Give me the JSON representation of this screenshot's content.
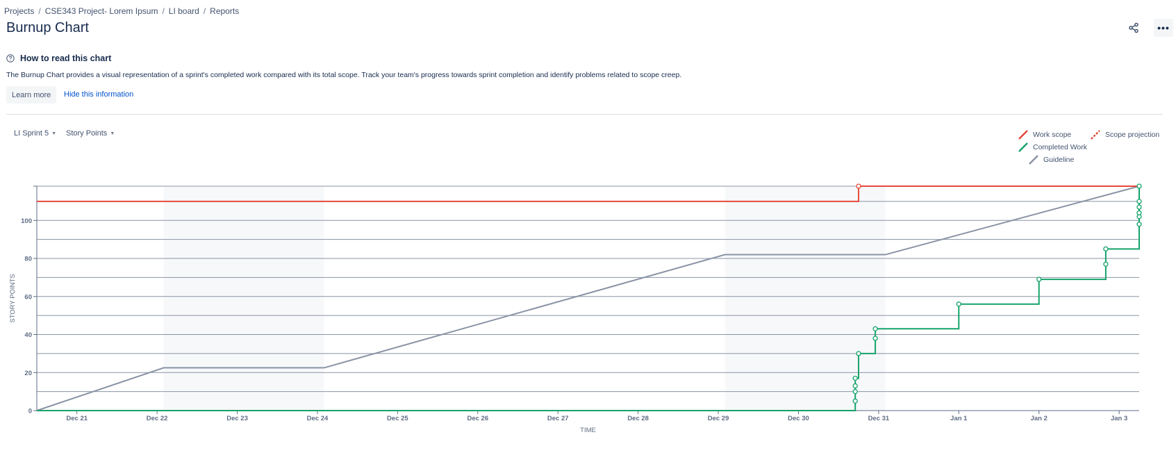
{
  "breadcrumb": [
    "Projects",
    "CSE343 Project- Lorem Ipsum",
    "LI board",
    "Reports"
  ],
  "page": {
    "title": "Burnup Chart"
  },
  "info": {
    "title": "How to read this chart",
    "description": "The Burnup Chart provides a visual representation of a sprint's completed work compared with its total scope. Track your team's progress towards sprint completion and identify problems related to scope creep.",
    "learn_more": "Learn more",
    "hide": "Hide this information"
  },
  "filters": {
    "sprint": "LI Sprint 5",
    "estimation": "Story Points"
  },
  "icons": {
    "share": "share-icon",
    "more": "more-icon",
    "help": "question-circle-icon",
    "caret": "chevron-down-icon"
  },
  "chart_data": {
    "type": "line",
    "xlabel": "TIME",
    "ylabel": "STORY POINTS",
    "x_ticks": [
      "Dec 21",
      "Dec 22",
      "Dec 23",
      "Dec 24",
      "Dec 25",
      "Dec 26",
      "Dec 27",
      "Dec 28",
      "Dec 29",
      "Dec 30",
      "Dec 31",
      "Jan 1",
      "Jan 2",
      "Jan 3"
    ],
    "x_range": [
      "Dec 20 12:00",
      "Jan 3 06:00"
    ],
    "ylim": [
      0,
      118
    ],
    "y_ticks": [
      0,
      20,
      40,
      60,
      80,
      100
    ],
    "non_working_periods": [
      [
        "Dec 22 02:00",
        "Dec 24 02:00"
      ],
      [
        "Dec 29 02:00",
        "Dec 31 02:00"
      ]
    ],
    "legend": [
      {
        "name": "Work scope",
        "color": "#E5493A",
        "style": "solid"
      },
      {
        "name": "Scope projection",
        "color": "#E5493A",
        "style": "dashed"
      },
      {
        "name": "Completed Work",
        "color": "#14A36A",
        "style": "solid"
      },
      {
        "name": "Guideline",
        "color": "#8993A4",
        "style": "solid"
      }
    ],
    "series": [
      {
        "name": "Work scope",
        "color": "#E5493A",
        "step": true,
        "points": [
          [
            "Dec 20 12:00",
            110
          ],
          [
            "Dec 30 18:00",
            118
          ],
          [
            "Jan 3 06:00",
            118
          ]
        ],
        "markers": [
          [
            "Dec 30 18:00",
            118
          ]
        ]
      },
      {
        "name": "Guideline",
        "color": "#8993A4",
        "step": false,
        "points": [
          [
            "Dec 20 12:00",
            0
          ],
          [
            "Dec 22 02:00",
            22.5
          ],
          [
            "Dec 24 02:00",
            22.5
          ],
          [
            "Dec 29 02:00",
            82
          ],
          [
            "Dec 31 02:00",
            82
          ],
          [
            "Jan 3 06:00",
            118
          ]
        ]
      },
      {
        "name": "Completed Work",
        "color": "#14A36A",
        "step": true,
        "points": [
          [
            "Dec 20 12:00",
            0
          ],
          [
            "Dec 30 17:00",
            0
          ],
          [
            "Dec 30 17:00",
            5
          ],
          [
            "Dec 30 17:00",
            10
          ],
          [
            "Dec 30 17:00",
            13
          ],
          [
            "Dec 30 17:00",
            17
          ],
          [
            "Dec 30 18:00",
            30
          ],
          [
            "Dec 30 23:00",
            38
          ],
          [
            "Dec 30 23:00",
            43
          ],
          [
            "Jan 1 00:00",
            56
          ],
          [
            "Jan 2 00:00",
            69
          ],
          [
            "Jan 2 20:00",
            77
          ],
          [
            "Jan 2 20:00",
            85
          ],
          [
            "Jan 3 06:00",
            98
          ],
          [
            "Jan 3 06:00",
            102
          ],
          [
            "Jan 3 06:00",
            104
          ],
          [
            "Jan 3 06:00",
            107
          ],
          [
            "Jan 3 06:00",
            110
          ],
          [
            "Jan 3 06:00",
            118
          ]
        ],
        "markers": [
          [
            "Dec 30 17:00",
            5
          ],
          [
            "Dec 30 17:00",
            10
          ],
          [
            "Dec 30 17:00",
            13
          ],
          [
            "Dec 30 17:00",
            17
          ],
          [
            "Dec 30 18:00",
            30
          ],
          [
            "Dec 30 23:00",
            38
          ],
          [
            "Dec 30 23:00",
            43
          ],
          [
            "Jan 1 00:00",
            56
          ],
          [
            "Jan 2 00:00",
            69
          ],
          [
            "Jan 2 20:00",
            77
          ],
          [
            "Jan 2 20:00",
            85
          ],
          [
            "Jan 3 06:00",
            98
          ],
          [
            "Jan 3 06:00",
            102
          ],
          [
            "Jan 3 06:00",
            104
          ],
          [
            "Jan 3 06:00",
            107
          ],
          [
            "Jan 3 06:00",
            110
          ],
          [
            "Jan 3 06:00",
            118
          ]
        ]
      }
    ]
  }
}
